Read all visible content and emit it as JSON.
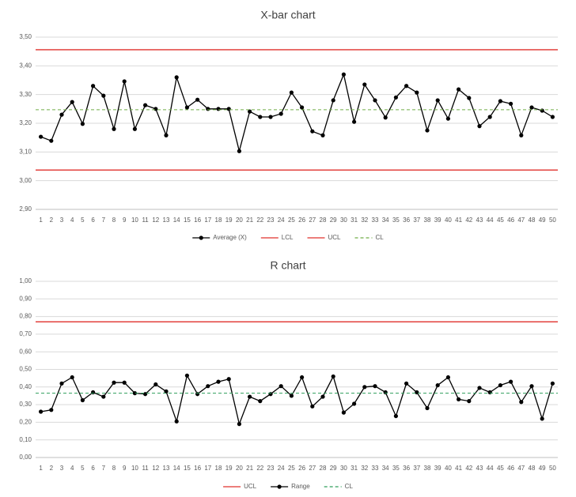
{
  "chart_data": [
    {
      "type": "line",
      "title": "X-bar chart",
      "categories": [
        1,
        2,
        3,
        4,
        5,
        6,
        7,
        8,
        9,
        10,
        11,
        12,
        13,
        14,
        15,
        16,
        17,
        18,
        19,
        20,
        21,
        22,
        23,
        24,
        25,
        26,
        27,
        28,
        29,
        30,
        31,
        32,
        33,
        34,
        35,
        36,
        37,
        38,
        39,
        40,
        41,
        42,
        43,
        44,
        45,
        46,
        47,
        48,
        49,
        50
      ],
      "ylim": [
        2.9,
        3.5
      ],
      "yticks": [
        {
          "value": 2.9,
          "label": "2,90"
        },
        {
          "value": 3.0,
          "label": "3,00"
        },
        {
          "value": 3.1,
          "label": "3,10"
        },
        {
          "value": 3.2,
          "label": "3,20"
        },
        {
          "value": 3.3,
          "label": "3,30"
        },
        {
          "value": 3.4,
          "label": "3,40"
        },
        {
          "value": 3.5,
          "label": "3,50"
        }
      ],
      "grid": true,
      "series": [
        {
          "name": "Average (X)",
          "color": "#000000",
          "markers": true,
          "values": [
            3.153,
            3.139,
            3.23,
            3.274,
            3.198,
            3.33,
            3.296,
            3.18,
            3.346,
            3.18,
            3.263,
            3.25,
            3.158,
            3.36,
            3.255,
            3.282,
            3.25,
            3.25,
            3.25,
            3.103,
            3.241,
            3.222,
            3.222,
            3.233,
            3.307,
            3.255,
            3.172,
            3.158,
            3.28,
            3.37,
            3.205,
            3.335,
            3.28,
            3.22,
            3.29,
            3.33,
            3.307,
            3.175,
            3.28,
            3.216,
            3.318,
            3.288,
            3.19,
            3.222,
            3.277,
            3.268,
            3.158,
            3.255,
            3.244,
            3.222
          ]
        },
        {
          "name": "LCL",
          "color": "#e0302c",
          "value": 3.037
        },
        {
          "name": "UCL",
          "color": "#e0302c",
          "value": 3.456
        },
        {
          "name": "CL",
          "color": "#70ad47",
          "dashed": true,
          "value": 3.247
        }
      ]
    },
    {
      "type": "line",
      "title": "R chart",
      "categories": [
        1,
        2,
        3,
        4,
        5,
        6,
        7,
        8,
        9,
        10,
        11,
        12,
        13,
        14,
        15,
        16,
        17,
        18,
        19,
        20,
        21,
        22,
        23,
        24,
        25,
        26,
        27,
        28,
        29,
        30,
        31,
        32,
        33,
        34,
        35,
        36,
        37,
        38,
        39,
        40,
        41,
        42,
        43,
        44,
        45,
        46,
        47,
        48,
        49,
        50
      ],
      "ylim": [
        0,
        1
      ],
      "yticks": [
        {
          "value": 0,
          "label": "0,00"
        },
        {
          "value": 0.1,
          "label": "0,10"
        },
        {
          "value": 0.2,
          "label": "0,20"
        },
        {
          "value": 0.3,
          "label": "0,30"
        },
        {
          "value": 0.4,
          "label": "0,40"
        },
        {
          "value": 0.5,
          "label": "0,50"
        },
        {
          "value": 0.6,
          "label": "0,60"
        },
        {
          "value": 0.7,
          "label": "0,70"
        },
        {
          "value": 0.8,
          "label": "0,80"
        },
        {
          "value": 0.9,
          "label": "0,90"
        },
        {
          "value": 1,
          "label": "1,00"
        }
      ],
      "grid": true,
      "series": [
        {
          "name": "UCL",
          "color": "#e0302c",
          "value": 0.77
        },
        {
          "name": "Range",
          "color": "#000000",
          "markers": true,
          "values": [
            0.26,
            0.27,
            0.42,
            0.455,
            0.325,
            0.37,
            0.345,
            0.425,
            0.425,
            0.365,
            0.36,
            0.415,
            0.375,
            0.205,
            0.465,
            0.36,
            0.405,
            0.43,
            0.445,
            0.19,
            0.345,
            0.32,
            0.36,
            0.405,
            0.35,
            0.455,
            0.29,
            0.345,
            0.46,
            0.255,
            0.305,
            0.4,
            0.405,
            0.37,
            0.235,
            0.42,
            0.37,
            0.28,
            0.41,
            0.455,
            0.33,
            0.32,
            0.395,
            0.37,
            0.41,
            0.43,
            0.315,
            0.405,
            0.22,
            0.42
          ]
        },
        {
          "name": "CL",
          "color": "#2e9e5b",
          "dashed": true,
          "value": 0.365
        }
      ]
    }
  ]
}
